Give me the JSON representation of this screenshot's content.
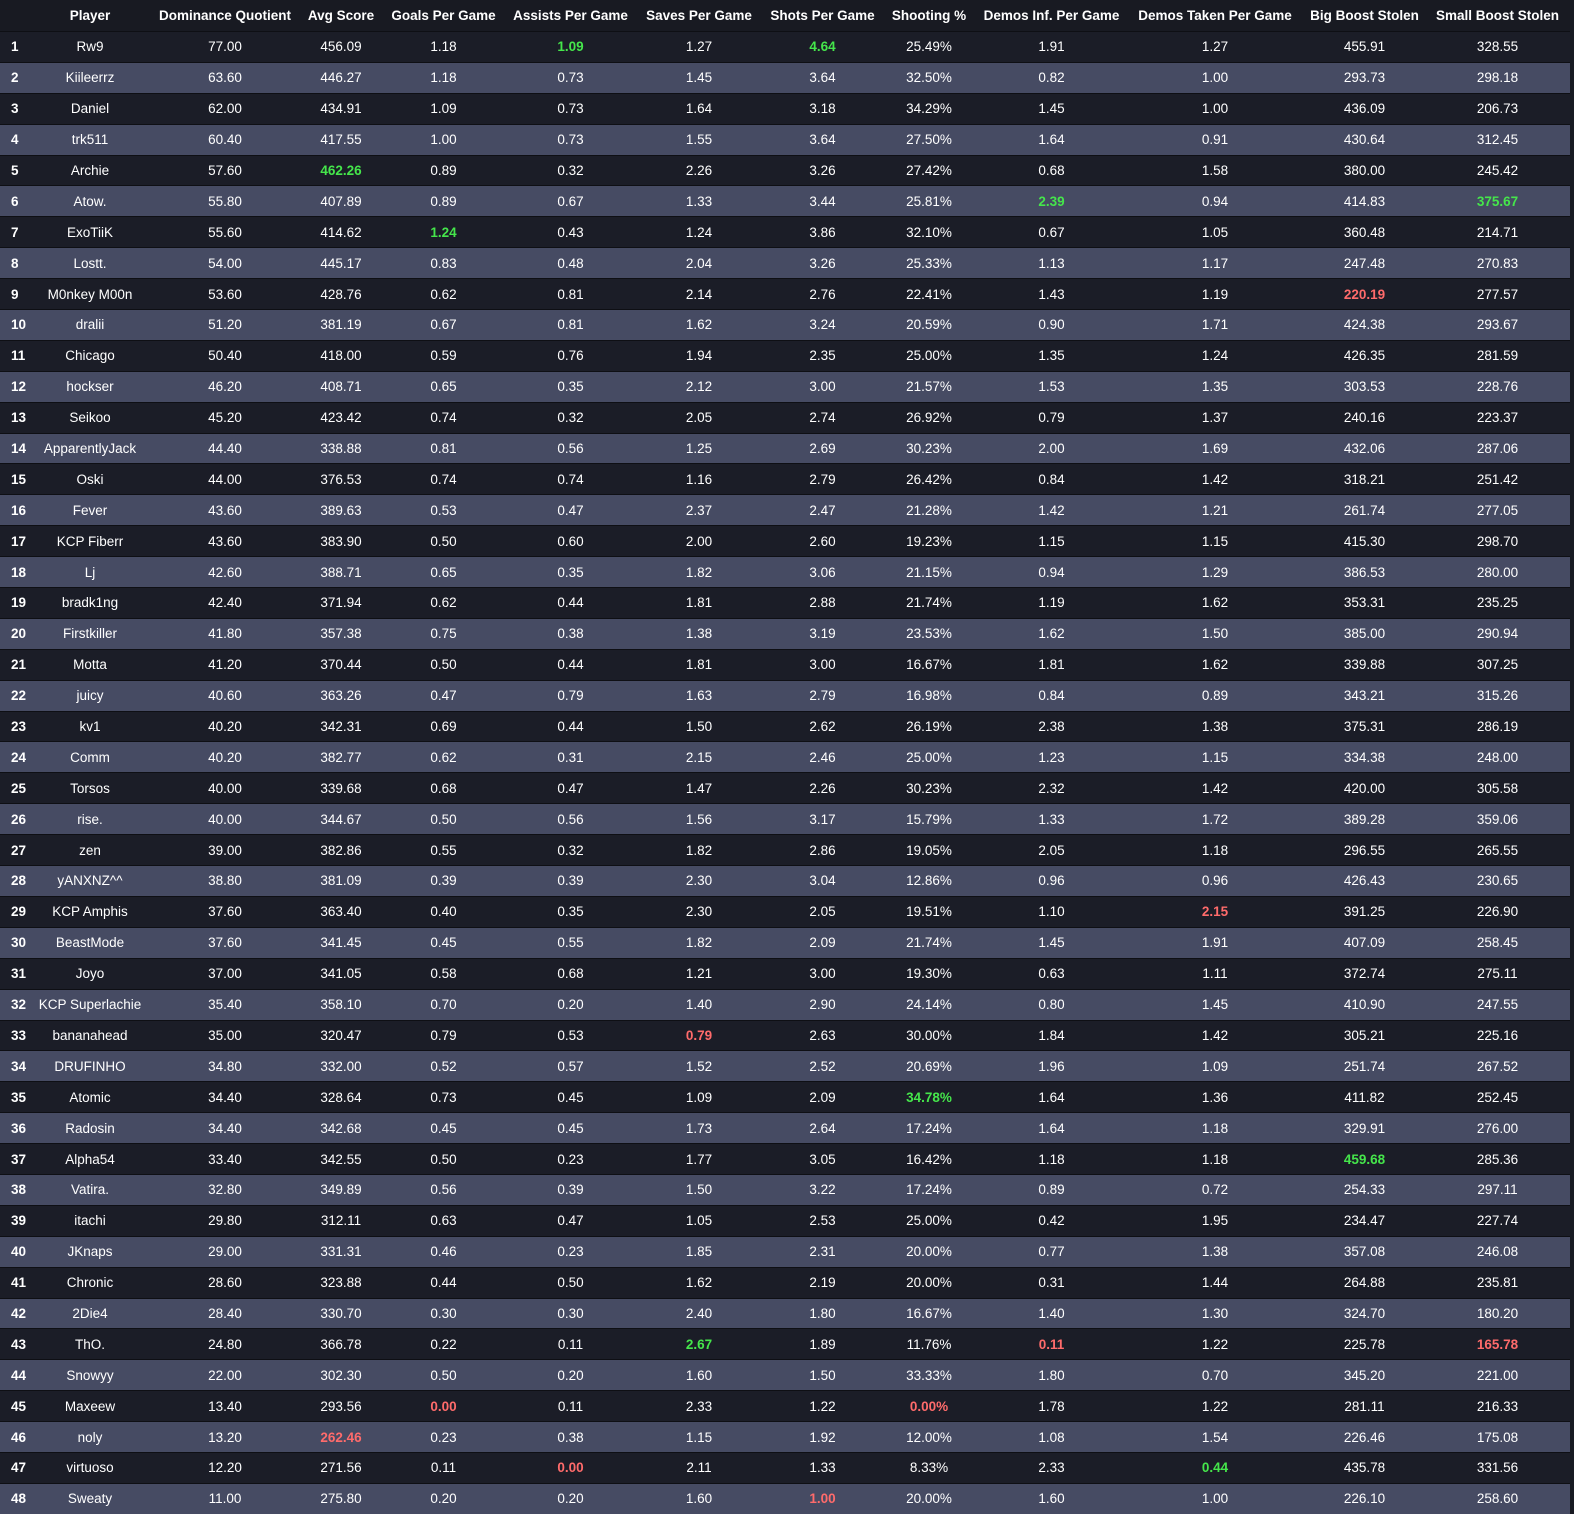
{
  "table": {
    "headers": [
      "",
      "Player",
      "Dominance Quotient",
      "Avg Score",
      "Goals Per Game",
      "Assists Per Game",
      "Saves Per Game",
      "Shots Per Game",
      "Shooting %",
      "Demos Inf. Per Game",
      "Demos Taken Per Game",
      "Big Boost Stolen",
      "Small Boost Stolen"
    ],
    "highlight_colors": {
      "best": "#45e64b",
      "worst": "#ff6b6b"
    },
    "rows": [
      [
        "1",
        "Rw9",
        "77.00",
        "456.09",
        "1.18",
        "1.09",
        "1.27",
        "4.64",
        "25.49%",
        "1.91",
        "1.27",
        "455.91",
        "328.55"
      ],
      [
        "2",
        "Kiileerrz",
        "63.60",
        "446.27",
        "1.18",
        "0.73",
        "1.45",
        "3.64",
        "32.50%",
        "0.82",
        "1.00",
        "293.73",
        "298.18"
      ],
      [
        "3",
        "Daniel",
        "62.00",
        "434.91",
        "1.09",
        "0.73",
        "1.64",
        "3.18",
        "34.29%",
        "1.45",
        "1.00",
        "436.09",
        "206.73"
      ],
      [
        "4",
        "trk511",
        "60.40",
        "417.55",
        "1.00",
        "0.73",
        "1.55",
        "3.64",
        "27.50%",
        "1.64",
        "0.91",
        "430.64",
        "312.45"
      ],
      [
        "5",
        "Archie",
        "57.60",
        "462.26",
        "0.89",
        "0.32",
        "2.26",
        "3.26",
        "27.42%",
        "0.68",
        "1.58",
        "380.00",
        "245.42"
      ],
      [
        "6",
        "Atow.",
        "55.80",
        "407.89",
        "0.89",
        "0.67",
        "1.33",
        "3.44",
        "25.81%",
        "2.39",
        "0.94",
        "414.83",
        "375.67"
      ],
      [
        "7",
        "ExoTiiK",
        "55.60",
        "414.62",
        "1.24",
        "0.43",
        "1.24",
        "3.86",
        "32.10%",
        "0.67",
        "1.05",
        "360.48",
        "214.71"
      ],
      [
        "8",
        "Lostt.",
        "54.00",
        "445.17",
        "0.83",
        "0.48",
        "2.04",
        "3.26",
        "25.33%",
        "1.13",
        "1.17",
        "247.48",
        "270.83"
      ],
      [
        "9",
        "M0nkey M00n",
        "53.60",
        "428.76",
        "0.62",
        "0.81",
        "2.14",
        "2.76",
        "22.41%",
        "1.43",
        "1.19",
        "220.19",
        "277.57"
      ],
      [
        "10",
        "dralii",
        "51.20",
        "381.19",
        "0.67",
        "0.81",
        "1.62",
        "3.24",
        "20.59%",
        "0.90",
        "1.71",
        "424.38",
        "293.67"
      ],
      [
        "11",
        "Chicago",
        "50.40",
        "418.00",
        "0.59",
        "0.76",
        "1.94",
        "2.35",
        "25.00%",
        "1.35",
        "1.24",
        "426.35",
        "281.59"
      ],
      [
        "12",
        "hockser",
        "46.20",
        "408.71",
        "0.65",
        "0.35",
        "2.12",
        "3.00",
        "21.57%",
        "1.53",
        "1.35",
        "303.53",
        "228.76"
      ],
      [
        "13",
        "Seikoo",
        "45.20",
        "423.42",
        "0.74",
        "0.32",
        "2.05",
        "2.74",
        "26.92%",
        "0.79",
        "1.37",
        "240.16",
        "223.37"
      ],
      [
        "14",
        "ApparentlyJack",
        "44.40",
        "338.88",
        "0.81",
        "0.56",
        "1.25",
        "2.69",
        "30.23%",
        "2.00",
        "1.69",
        "432.06",
        "287.06"
      ],
      [
        "15",
        "Oski",
        "44.00",
        "376.53",
        "0.74",
        "0.74",
        "1.16",
        "2.79",
        "26.42%",
        "0.84",
        "1.42",
        "318.21",
        "251.42"
      ],
      [
        "16",
        "Fever",
        "43.60",
        "389.63",
        "0.53",
        "0.47",
        "2.37",
        "2.47",
        "21.28%",
        "1.42",
        "1.21",
        "261.74",
        "277.05"
      ],
      [
        "17",
        "KCP Fiberr",
        "43.60",
        "383.90",
        "0.50",
        "0.60",
        "2.00",
        "2.60",
        "19.23%",
        "1.15",
        "1.15",
        "415.30",
        "298.70"
      ],
      [
        "18",
        "Lj",
        "42.60",
        "388.71",
        "0.65",
        "0.35",
        "1.82",
        "3.06",
        "21.15%",
        "0.94",
        "1.29",
        "386.53",
        "280.00"
      ],
      [
        "19",
        "bradk1ng",
        "42.40",
        "371.94",
        "0.62",
        "0.44",
        "1.81",
        "2.88",
        "21.74%",
        "1.19",
        "1.62",
        "353.31",
        "235.25"
      ],
      [
        "20",
        "Firstkiller",
        "41.80",
        "357.38",
        "0.75",
        "0.38",
        "1.38",
        "3.19",
        "23.53%",
        "1.62",
        "1.50",
        "385.00",
        "290.94"
      ],
      [
        "21",
        "Motta",
        "41.20",
        "370.44",
        "0.50",
        "0.44",
        "1.81",
        "3.00",
        "16.67%",
        "1.81",
        "1.62",
        "339.88",
        "307.25"
      ],
      [
        "22",
        "juicy",
        "40.60",
        "363.26",
        "0.47",
        "0.79",
        "1.63",
        "2.79",
        "16.98%",
        "0.84",
        "0.89",
        "343.21",
        "315.26"
      ],
      [
        "23",
        "kv1",
        "40.20",
        "342.31",
        "0.69",
        "0.44",
        "1.50",
        "2.62",
        "26.19%",
        "2.38",
        "1.38",
        "375.31",
        "286.19"
      ],
      [
        "24",
        "Comm",
        "40.20",
        "382.77",
        "0.62",
        "0.31",
        "2.15",
        "2.46",
        "25.00%",
        "1.23",
        "1.15",
        "334.38",
        "248.00"
      ],
      [
        "25",
        "Torsos",
        "40.00",
        "339.68",
        "0.68",
        "0.47",
        "1.47",
        "2.26",
        "30.23%",
        "2.32",
        "1.42",
        "420.00",
        "305.58"
      ],
      [
        "26",
        "rise.",
        "40.00",
        "344.67",
        "0.50",
        "0.56",
        "1.56",
        "3.17",
        "15.79%",
        "1.33",
        "1.72",
        "389.28",
        "359.06"
      ],
      [
        "27",
        "zen",
        "39.00",
        "382.86",
        "0.55",
        "0.32",
        "1.82",
        "2.86",
        "19.05%",
        "2.05",
        "1.18",
        "296.55",
        "265.55"
      ],
      [
        "28",
        "yANXNZ^^",
        "38.80",
        "381.09",
        "0.39",
        "0.39",
        "2.30",
        "3.04",
        "12.86%",
        "0.96",
        "0.96",
        "426.43",
        "230.65"
      ],
      [
        "29",
        "KCP Amphis",
        "37.60",
        "363.40",
        "0.40",
        "0.35",
        "2.30",
        "2.05",
        "19.51%",
        "1.10",
        "2.15",
        "391.25",
        "226.90"
      ],
      [
        "30",
        "BeastMode",
        "37.60",
        "341.45",
        "0.45",
        "0.55",
        "1.82",
        "2.09",
        "21.74%",
        "1.45",
        "1.91",
        "407.09",
        "258.45"
      ],
      [
        "31",
        "Joyo",
        "37.00",
        "341.05",
        "0.58",
        "0.68",
        "1.21",
        "3.00",
        "19.30%",
        "0.63",
        "1.11",
        "372.74",
        "275.11"
      ],
      [
        "32",
        "KCP Superlachie",
        "35.40",
        "358.10",
        "0.70",
        "0.20",
        "1.40",
        "2.90",
        "24.14%",
        "0.80",
        "1.45",
        "410.90",
        "247.55"
      ],
      [
        "33",
        "bananahead",
        "35.00",
        "320.47",
        "0.79",
        "0.53",
        "0.79",
        "2.63",
        "30.00%",
        "1.84",
        "1.42",
        "305.21",
        "225.16"
      ],
      [
        "34",
        "DRUFINHO",
        "34.80",
        "332.00",
        "0.52",
        "0.57",
        "1.52",
        "2.52",
        "20.69%",
        "1.96",
        "1.09",
        "251.74",
        "267.52"
      ],
      [
        "35",
        "Atomic",
        "34.40",
        "328.64",
        "0.73",
        "0.45",
        "1.09",
        "2.09",
        "34.78%",
        "1.64",
        "1.36",
        "411.82",
        "252.45"
      ],
      [
        "36",
        "Radosin",
        "34.40",
        "342.68",
        "0.45",
        "0.45",
        "1.73",
        "2.64",
        "17.24%",
        "1.64",
        "1.18",
        "329.91",
        "276.00"
      ],
      [
        "37",
        "Alpha54",
        "33.40",
        "342.55",
        "0.50",
        "0.23",
        "1.77",
        "3.05",
        "16.42%",
        "1.18",
        "1.18",
        "459.68",
        "285.36"
      ],
      [
        "38",
        "Vatira.",
        "32.80",
        "349.89",
        "0.56",
        "0.39",
        "1.50",
        "3.22",
        "17.24%",
        "0.89",
        "0.72",
        "254.33",
        "297.11"
      ],
      [
        "39",
        "itachi",
        "29.80",
        "312.11",
        "0.63",
        "0.47",
        "1.05",
        "2.53",
        "25.00%",
        "0.42",
        "1.95",
        "234.47",
        "227.74"
      ],
      [
        "40",
        "JKnaps",
        "29.00",
        "331.31",
        "0.46",
        "0.23",
        "1.85",
        "2.31",
        "20.00%",
        "0.77",
        "1.38",
        "357.08",
        "246.08"
      ],
      [
        "41",
        "Chronic",
        "28.60",
        "323.88",
        "0.44",
        "0.50",
        "1.62",
        "2.19",
        "20.00%",
        "0.31",
        "1.44",
        "264.88",
        "235.81"
      ],
      [
        "42",
        "2Die4",
        "28.40",
        "330.70",
        "0.30",
        "0.30",
        "2.40",
        "1.80",
        "16.67%",
        "1.40",
        "1.30",
        "324.70",
        "180.20"
      ],
      [
        "43",
        "ThO.",
        "24.80",
        "366.78",
        "0.22",
        "0.11",
        "2.67",
        "1.89",
        "11.76%",
        "0.11",
        "1.22",
        "225.78",
        "165.78"
      ],
      [
        "44",
        "Snowyy",
        "22.00",
        "302.30",
        "0.50",
        "0.20",
        "1.60",
        "1.50",
        "33.33%",
        "1.80",
        "0.70",
        "345.20",
        "221.00"
      ],
      [
        "45",
        "Maxeew",
        "13.40",
        "293.56",
        "0.00",
        "0.11",
        "2.33",
        "1.22",
        "0.00%",
        "1.78",
        "1.22",
        "281.11",
        "216.33"
      ],
      [
        "46",
        "noly",
        "13.20",
        "262.46",
        "0.23",
        "0.38",
        "1.15",
        "1.92",
        "12.00%",
        "1.08",
        "1.54",
        "226.46",
        "175.08"
      ],
      [
        "47",
        "virtuoso",
        "12.20",
        "271.56",
        "0.11",
        "0.00",
        "2.11",
        "1.33",
        "8.33%",
        "2.33",
        "0.44",
        "435.78",
        "331.56"
      ],
      [
        "48",
        "Sweaty",
        "11.00",
        "275.80",
        "0.20",
        "0.20",
        "1.60",
        "1.00",
        "20.00%",
        "1.60",
        "1.00",
        "226.10",
        "258.60"
      ]
    ],
    "best_cells": [
      [
        0,
        5
      ],
      [
        0,
        7
      ],
      [
        4,
        3
      ],
      [
        5,
        9
      ],
      [
        5,
        12
      ],
      [
        6,
        4
      ],
      [
        34,
        8
      ],
      [
        36,
        11
      ],
      [
        42,
        6
      ],
      [
        46,
        10
      ]
    ],
    "worst_cells": [
      [
        8,
        11
      ],
      [
        28,
        10
      ],
      [
        32,
        6
      ],
      [
        42,
        9
      ],
      [
        42,
        12
      ],
      [
        44,
        4
      ],
      [
        44,
        8
      ],
      [
        45,
        3
      ],
      [
        46,
        5
      ],
      [
        47,
        7
      ]
    ]
  }
}
